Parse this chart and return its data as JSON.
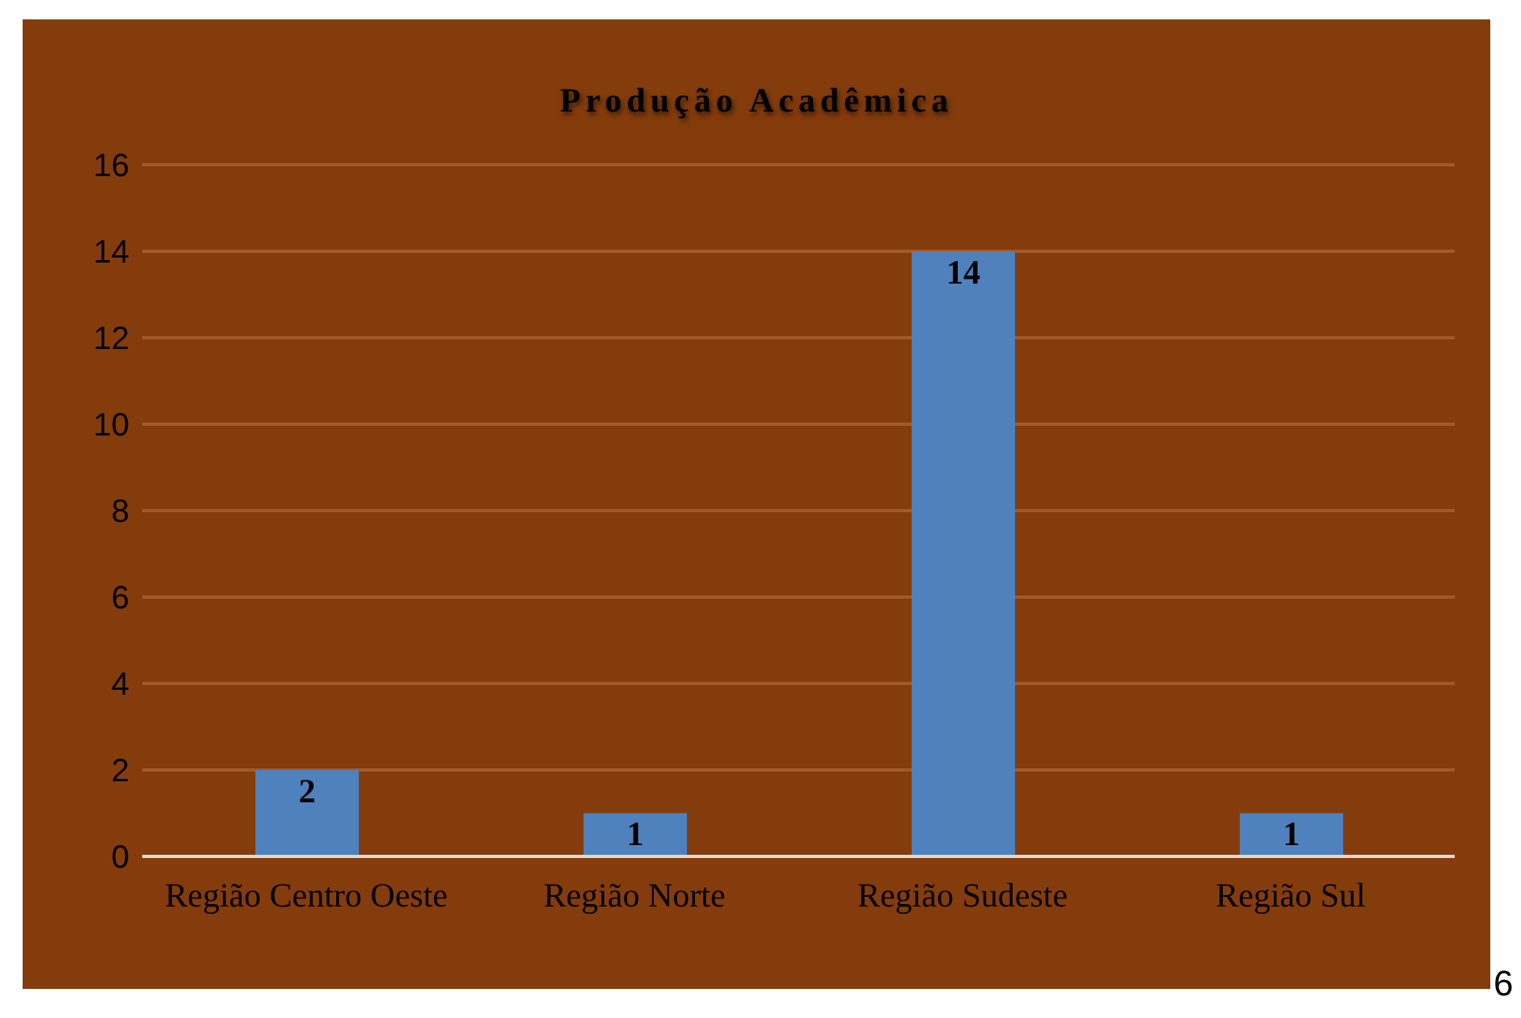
{
  "chart_data": {
    "type": "bar",
    "title": "Produção Acadêmica",
    "categories": [
      "Região Centro Oeste",
      "Região Norte",
      "Região Sudeste",
      "Região Sul"
    ],
    "values": [
      2,
      1,
      14,
      1
    ],
    "color": "#4f81bd",
    "ylim": [
      0,
      16
    ],
    "yticks": [
      0,
      2,
      4,
      6,
      8,
      10,
      12,
      14,
      16
    ],
    "grid": "y",
    "data_labels": true,
    "legend": false,
    "annotations": [
      "6"
    ]
  }
}
